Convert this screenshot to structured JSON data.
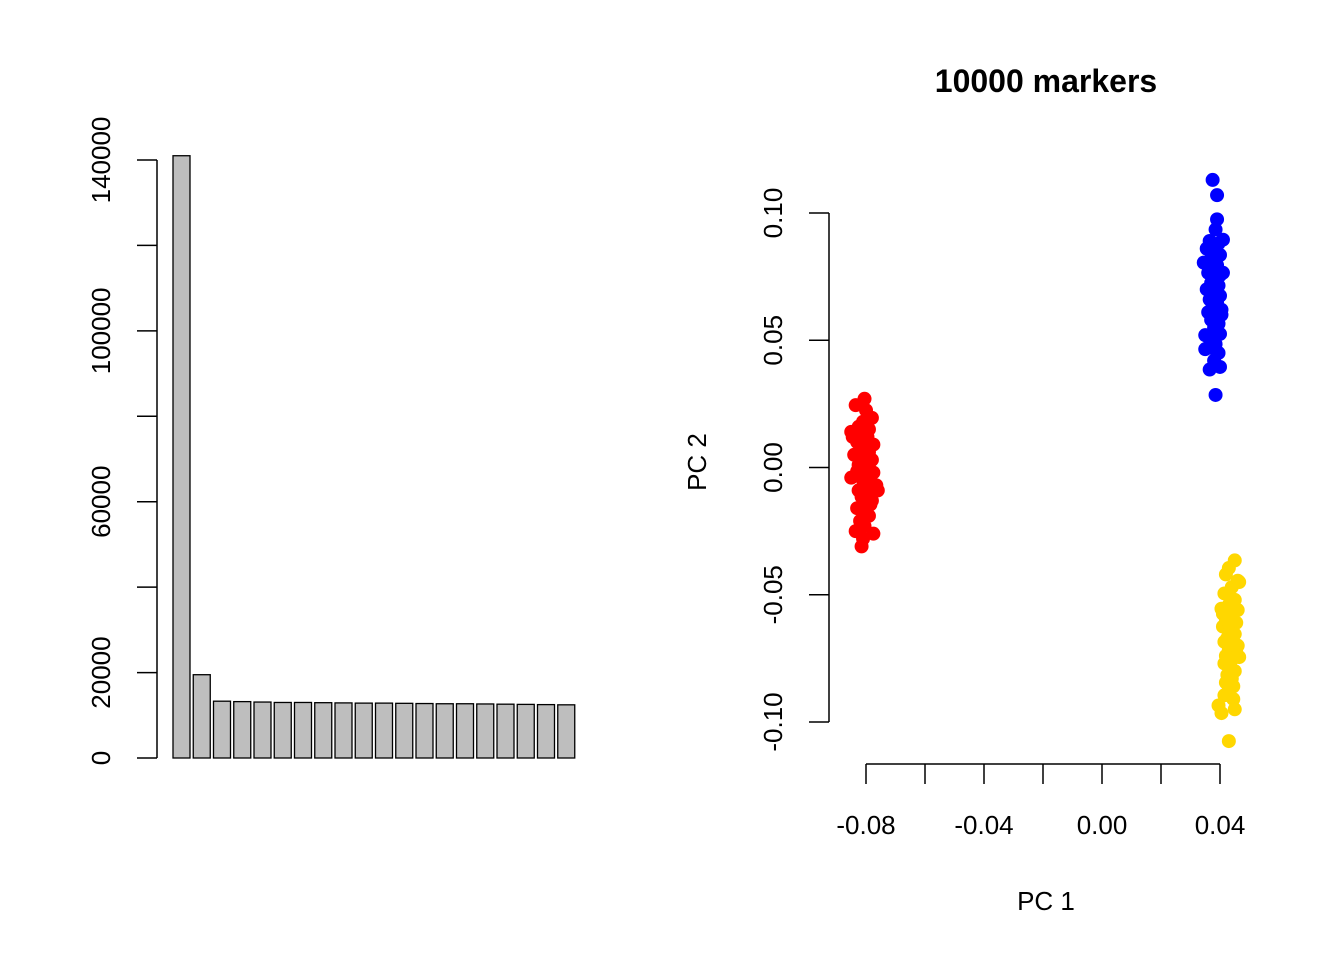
{
  "chart_data": [
    {
      "type": "bar",
      "title": "",
      "xlabel": "",
      "ylabel": "",
      "bar_color": "#bebebe",
      "ylim": [
        0,
        140000
      ],
      "yticks": [
        0,
        20000,
        40000,
        60000,
        80000,
        100000,
        120000,
        140000
      ],
      "ytick_labels": [
        "0",
        "20000",
        "",
        "60000",
        "",
        "100000",
        "",
        "140000"
      ],
      "values": [
        141000,
        19500,
        13300,
        13200,
        13100,
        13000,
        13000,
        12950,
        12900,
        12850,
        12850,
        12800,
        12750,
        12700,
        12700,
        12650,
        12600,
        12550,
        12500,
        12450
      ]
    },
    {
      "type": "scatter",
      "title": "10000 markers",
      "xlabel": "PC 1",
      "ylabel": "PC 2",
      "xlim": [
        -0.09,
        0.06
      ],
      "ylim": [
        -0.11,
        0.115
      ],
      "xticks": [
        -0.08,
        -0.06,
        -0.04,
        -0.02,
        0.0,
        0.02,
        0.04
      ],
      "xtick_labels": [
        "-0.08",
        "",
        "-0.04",
        "",
        "0.00",
        "",
        "0.04"
      ],
      "yticks": [
        -0.1,
        -0.05,
        0.0,
        0.05,
        0.1
      ],
      "ytick_labels": [
        "-0.10",
        "-0.05",
        "0.00",
        "0.05",
        "0.10"
      ],
      "series": [
        {
          "color": "#ff0000",
          "points": [
            [
              -0.0805,
              0.027
            ],
            [
              -0.0835,
              0.0245
            ],
            [
              -0.08,
              0.0225
            ],
            [
              -0.078,
              0.0195
            ],
            [
              -0.081,
              0.018
            ],
            [
              -0.0825,
              0.016
            ],
            [
              -0.079,
              0.015
            ],
            [
              -0.085,
              0.014
            ],
            [
              -0.0815,
              0.013
            ],
            [
              -0.0795,
              0.012
            ],
            [
              -0.083,
              0.01
            ],
            [
              -0.0775,
              0.009
            ],
            [
              -0.0805,
              0.008
            ],
            [
              -0.082,
              0.007
            ],
            [
              -0.079,
              0.006
            ],
            [
              -0.084,
              0.005
            ],
            [
              -0.081,
              0.004
            ],
            [
              -0.078,
              0.003
            ],
            [
              -0.08,
              0.002
            ],
            [
              -0.0825,
              0.001
            ],
            [
              -0.079,
              0.0
            ],
            [
              -0.0815,
              -0.0005
            ],
            [
              -0.083,
              -0.0015
            ],
            [
              -0.0775,
              -0.002
            ],
            [
              -0.08,
              -0.003
            ],
            [
              -0.085,
              -0.004
            ],
            [
              -0.081,
              -0.005
            ],
            [
              -0.0785,
              -0.006
            ],
            [
              -0.0765,
              -0.007
            ],
            [
              -0.0805,
              -0.008
            ],
            [
              -0.0825,
              -0.009
            ],
            [
              -0.0795,
              -0.01
            ],
            [
              -0.0815,
              -0.0115
            ],
            [
              -0.078,
              -0.013
            ],
            [
              -0.081,
              -0.0145
            ],
            [
              -0.083,
              -0.016
            ],
            [
              -0.08,
              -0.0175
            ],
            [
              -0.079,
              -0.019
            ],
            [
              -0.082,
              -0.021
            ],
            [
              -0.0805,
              -0.023
            ],
            [
              -0.0835,
              -0.025
            ],
            [
              -0.0775,
              -0.026
            ],
            [
              -0.081,
              -0.028
            ],
            [
              -0.0815,
              -0.031
            ],
            [
              -0.076,
              -0.009
            ],
            [
              -0.0845,
              0.012
            ],
            [
              -0.0795,
              0.004
            ],
            [
              -0.0785,
              -0.0145
            ]
          ]
        },
        {
          "color": "#0000ff",
          "points": [
            [
              0.0375,
              0.113
            ],
            [
              0.039,
              0.107
            ],
            [
              0.039,
              0.0975
            ],
            [
              0.0385,
              0.0935
            ],
            [
              0.0365,
              0.089
            ],
            [
              0.0395,
              0.088
            ],
            [
              0.0355,
              0.086
            ],
            [
              0.038,
              0.085
            ],
            [
              0.04,
              0.0835
            ],
            [
              0.037,
              0.082
            ],
            [
              0.0345,
              0.0805
            ],
            [
              0.039,
              0.0795
            ],
            [
              0.0375,
              0.078
            ],
            [
              0.036,
              0.0765
            ],
            [
              0.04,
              0.0755
            ],
            [
              0.0385,
              0.074
            ],
            [
              0.037,
              0.0725
            ],
            [
              0.0395,
              0.0715
            ],
            [
              0.0355,
              0.07
            ],
            [
              0.038,
              0.069
            ],
            [
              0.04,
              0.0675
            ],
            [
              0.0365,
              0.066
            ],
            [
              0.039,
              0.065
            ],
            [
              0.0375,
              0.0635
            ],
            [
              0.0405,
              0.062
            ],
            [
              0.036,
              0.061
            ],
            [
              0.0385,
              0.0595
            ],
            [
              0.037,
              0.058
            ],
            [
              0.0395,
              0.0565
            ],
            [
              0.038,
              0.055
            ],
            [
              0.035,
              0.052
            ],
            [
              0.04,
              0.0525
            ],
            [
              0.0365,
              0.0505
            ],
            [
              0.0385,
              0.0485
            ],
            [
              0.0375,
              0.047
            ],
            [
              0.035,
              0.0465
            ],
            [
              0.0395,
              0.045
            ],
            [
              0.038,
              0.042
            ],
            [
              0.0365,
              0.0385
            ],
            [
              0.04,
              0.0395
            ],
            [
              0.0385,
              0.0285
            ],
            [
              0.041,
              0.0895
            ],
            [
              0.041,
              0.0765
            ],
            [
              0.0405,
              0.06
            ]
          ]
        },
        {
          "color": "#ffd700",
          "points": [
            [
              0.045,
              -0.0365
            ],
            [
              0.043,
              -0.0395
            ],
            [
              0.042,
              -0.042
            ],
            [
              0.046,
              -0.0445
            ],
            [
              0.044,
              -0.047
            ],
            [
              0.0415,
              -0.0495
            ],
            [
              0.045,
              -0.052
            ],
            [
              0.043,
              -0.054
            ],
            [
              0.0405,
              -0.0555
            ],
            [
              0.046,
              -0.056
            ],
            [
              0.044,
              -0.058
            ],
            [
              0.042,
              -0.0595
            ],
            [
              0.0455,
              -0.061
            ],
            [
              0.041,
              -0.0625
            ],
            [
              0.0435,
              -0.064
            ],
            [
              0.045,
              -0.0655
            ],
            [
              0.0425,
              -0.067
            ],
            [
              0.0415,
              -0.0685
            ],
            [
              0.0445,
              -0.07
            ],
            [
              0.043,
              -0.0715
            ],
            [
              0.0455,
              -0.0725
            ],
            [
              0.042,
              -0.074
            ],
            [
              0.044,
              -0.0755
            ],
            [
              0.0465,
              -0.0745
            ],
            [
              0.0415,
              -0.077
            ],
            [
              0.0435,
              -0.0785
            ],
            [
              0.045,
              -0.08
            ],
            [
              0.0425,
              -0.0815
            ],
            [
              0.044,
              -0.083
            ],
            [
              0.042,
              -0.0845
            ],
            [
              0.0445,
              -0.086
            ],
            [
              0.043,
              -0.0875
            ],
            [
              0.0415,
              -0.0895
            ],
            [
              0.0445,
              -0.091
            ],
            [
              0.0395,
              -0.0935
            ],
            [
              0.0405,
              -0.0965
            ],
            [
              0.045,
              -0.095
            ],
            [
              0.043,
              -0.1075
            ],
            [
              0.0465,
              -0.045
            ],
            [
              0.041,
              -0.0575
            ],
            [
              0.046,
              -0.07
            ],
            [
              0.0425,
              -0.06
            ]
          ]
        }
      ]
    }
  ]
}
